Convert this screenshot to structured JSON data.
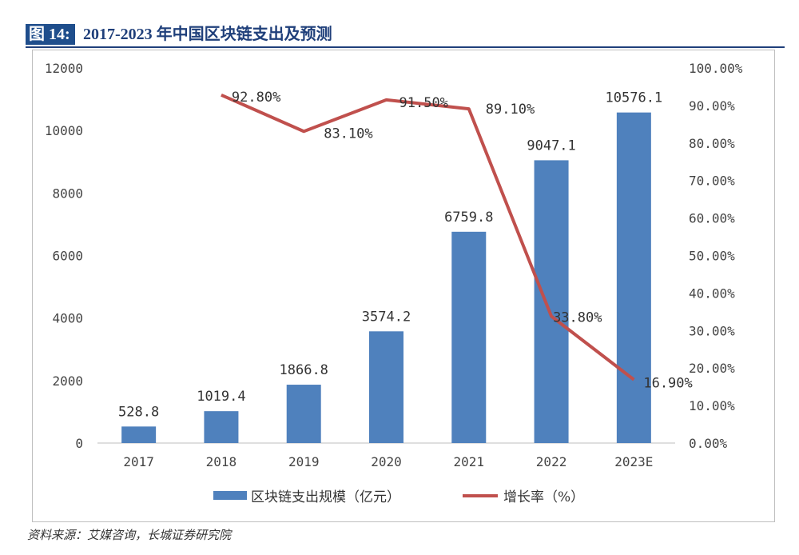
{
  "figure": {
    "label": "图 14:",
    "title": "2017-2023 年中国区块链支出及预测"
  },
  "chart_data": {
    "type": "bar",
    "categories": [
      "2017",
      "2018",
      "2019",
      "2020",
      "2021",
      "2022",
      "2023E"
    ],
    "series": [
      {
        "name": "区块链支出规模（亿元）",
        "kind": "bar",
        "axis": "left",
        "color": "#4f81bd",
        "values": [
          528.8,
          1019.4,
          1866.8,
          3574.2,
          6759.8,
          9047.1,
          10576.1
        ],
        "labels": [
          "528.8",
          "1019.4",
          "1866.8",
          "3574.2",
          "6759.8",
          "9047.1",
          "10576.1"
        ]
      },
      {
        "name": "增长率（%）",
        "kind": "line",
        "axis": "right",
        "color": "#c0504d",
        "values": [
          null,
          92.8,
          83.1,
          91.5,
          89.1,
          33.8,
          16.9
        ],
        "labels": [
          "",
          "92.80%",
          "83.10%",
          "91.50%",
          "89.10%",
          "33.80%",
          "16.90%"
        ]
      }
    ],
    "y_left": {
      "ylim": [
        0,
        12000
      ],
      "ticks": [
        "0",
        "2000",
        "4000",
        "6000",
        "8000",
        "10000",
        "12000"
      ]
    },
    "y_right": {
      "ylim": [
        0,
        100
      ],
      "ticks": [
        "0.00%",
        "10.00%",
        "20.00%",
        "30.00%",
        "40.00%",
        "50.00%",
        "60.00%",
        "70.00%",
        "80.00%",
        "90.00%",
        "100.00%"
      ]
    },
    "legend_position": "bottom",
    "grid": false
  },
  "source": "资料来源：艾媒咨询，长城证券研究院"
}
